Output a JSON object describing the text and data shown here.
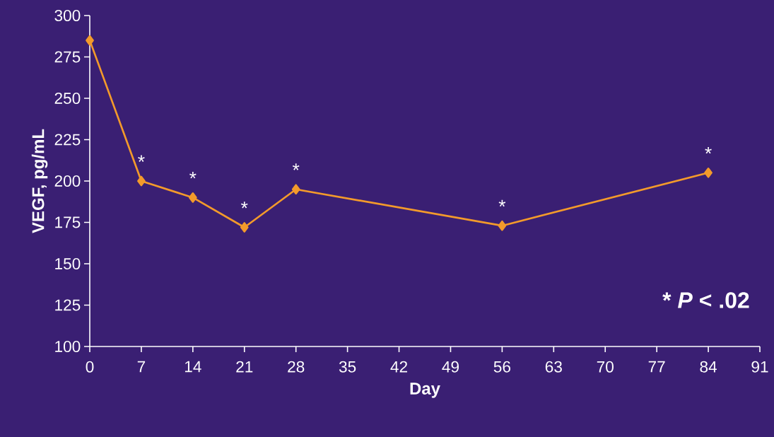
{
  "chart_data": {
    "type": "line",
    "xlabel": "Day",
    "ylabel": "VEGF, pg/mL",
    "x": [
      0,
      7,
      14,
      21,
      28,
      56,
      84
    ],
    "series": [
      {
        "color": "#f39a2b",
        "values": [
          285,
          200,
          190,
          172,
          195,
          173,
          205
        ]
      }
    ],
    "xlim": [
      0,
      91
    ],
    "xticks": [
      0,
      7,
      14,
      21,
      28,
      35,
      42,
      49,
      56,
      63,
      70,
      77,
      84,
      91
    ],
    "ylim": [
      100,
      300
    ],
    "yticks": [
      100,
      125,
      150,
      175,
      200,
      225,
      250,
      275,
      300
    ],
    "grid": false,
    "marker": "diamond",
    "line_style": "solid",
    "annotations": [
      {
        "text": "*",
        "x": 7,
        "y": 200
      },
      {
        "text": "*",
        "x": 14,
        "y": 190
      },
      {
        "text": "*",
        "x": 21,
        "y": 172
      },
      {
        "text": "*",
        "x": 28,
        "y": 195
      },
      {
        "text": "*",
        "x": 56,
        "y": 173
      },
      {
        "text": "*",
        "x": 84,
        "y": 205
      },
      "* *P* < .02"
    ]
  }
}
